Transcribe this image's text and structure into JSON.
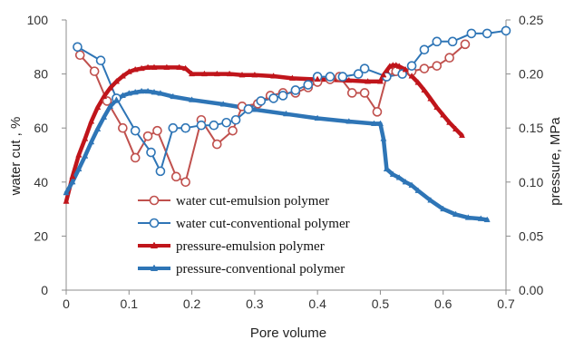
{
  "chart_data": {
    "type": "line",
    "xlabel": "Pore volume",
    "ylabel_left": "water cut , %",
    "ylabel_right": "pressure, MPa",
    "xlim": [
      0,
      0.7
    ],
    "ylim_left": [
      0,
      100
    ],
    "ylim_right": [
      0,
      0.25
    ],
    "x_ticks": [
      "0",
      "0.1",
      "0.2",
      "0.3",
      "0.4",
      "0.5",
      "0.6",
      "0.7"
    ],
    "y_left_ticks": [
      "0",
      "20",
      "40",
      "60",
      "80",
      "100"
    ],
    "y_right_ticks": [
      "0.00",
      "0.05",
      "0.10",
      "0.15",
      "0.20",
      "0.25"
    ],
    "grid": false,
    "legend_position": "lower-left",
    "series": [
      {
        "name": "water cut-emulsion polymer",
        "axis": "left",
        "color": "#c0504d",
        "marker": "circle-open",
        "x": [
          0.022,
          0.045,
          0.065,
          0.09,
          0.11,
          0.13,
          0.145,
          0.175,
          0.19,
          0.215,
          0.24,
          0.265,
          0.28,
          0.305,
          0.325,
          0.345,
          0.365,
          0.385,
          0.4,
          0.42,
          0.435,
          0.455,
          0.475,
          0.495,
          0.51,
          0.525,
          0.55,
          0.57,
          0.59,
          0.61,
          0.635
        ],
        "y": [
          87,
          81,
          70,
          60,
          49,
          57,
          59,
          42,
          40,
          63,
          54,
          59,
          68,
          69,
          72,
          73,
          73,
          75,
          77,
          78,
          79,
          73,
          73,
          66,
          79,
          81,
          81,
          82,
          83,
          86,
          91
        ]
      },
      {
        "name": "water cut-conventional polymer",
        "axis": "left",
        "color": "#2e75b6",
        "marker": "circle-open",
        "x": [
          0.018,
          0.055,
          0.08,
          0.11,
          0.135,
          0.15,
          0.17,
          0.19,
          0.215,
          0.235,
          0.255,
          0.27,
          0.29,
          0.31,
          0.33,
          0.345,
          0.365,
          0.385,
          0.4,
          0.42,
          0.44,
          0.465,
          0.475,
          0.51,
          0.535,
          0.55,
          0.57,
          0.59,
          0.615,
          0.645,
          0.67,
          0.7
        ],
        "y": [
          90,
          85,
          71,
          59,
          51,
          44,
          60,
          60,
          61,
          61,
          62,
          63,
          67,
          70,
          71,
          72,
          74,
          76,
          79,
          79,
          79,
          80,
          82,
          79,
          80,
          83,
          89,
          92,
          92,
          95,
          95,
          96
        ]
      },
      {
        "name": "pressure-emulsion polymer",
        "axis": "right",
        "color": "#c0151b",
        "marker": "triangle-filled",
        "x": [
          0,
          0.01,
          0.02,
          0.03,
          0.04,
          0.05,
          0.06,
          0.07,
          0.08,
          0.09,
          0.1,
          0.11,
          0.12,
          0.13,
          0.14,
          0.16,
          0.18,
          0.19,
          0.2,
          0.22,
          0.24,
          0.26,
          0.28,
          0.3,
          0.33,
          0.36,
          0.4,
          0.45,
          0.48,
          0.5,
          0.505,
          0.51,
          0.515,
          0.52,
          0.525,
          0.53,
          0.54,
          0.55,
          0.56,
          0.57,
          0.58,
          0.59,
          0.6,
          0.61,
          0.62,
          0.63
        ],
        "y": [
          0.082,
          0.105,
          0.125,
          0.14,
          0.156,
          0.169,
          0.179,
          0.187,
          0.193,
          0.198,
          0.202,
          0.204,
          0.205,
          0.206,
          0.206,
          0.206,
          0.206,
          0.205,
          0.2,
          0.2,
          0.2,
          0.2,
          0.199,
          0.199,
          0.198,
          0.196,
          0.195,
          0.194,
          0.193,
          0.193,
          0.199,
          0.203,
          0.207,
          0.208,
          0.208,
          0.207,
          0.204,
          0.198,
          0.192,
          0.185,
          0.177,
          0.169,
          0.162,
          0.155,
          0.149,
          0.143
        ]
      },
      {
        "name": "pressure-conventional polymer",
        "axis": "right",
        "color": "#2e75b6",
        "marker": "triangle-filled",
        "x": [
          0,
          0.01,
          0.02,
          0.03,
          0.04,
          0.05,
          0.06,
          0.07,
          0.08,
          0.09,
          0.1,
          0.11,
          0.12,
          0.13,
          0.14,
          0.15,
          0.17,
          0.2,
          0.25,
          0.3,
          0.35,
          0.4,
          0.45,
          0.49,
          0.5,
          0.505,
          0.51,
          0.52,
          0.53,
          0.54,
          0.55,
          0.56,
          0.58,
          0.6,
          0.62,
          0.64,
          0.66,
          0.67
        ],
        "y": [
          0.09,
          0.1,
          0.112,
          0.124,
          0.137,
          0.149,
          0.16,
          0.17,
          0.176,
          0.18,
          0.182,
          0.183,
          0.184,
          0.184,
          0.183,
          0.182,
          0.179,
          0.176,
          0.172,
          0.167,
          0.163,
          0.159,
          0.156,
          0.154,
          0.154,
          0.14,
          0.112,
          0.107,
          0.104,
          0.1,
          0.097,
          0.092,
          0.083,
          0.075,
          0.07,
          0.067,
          0.066,
          0.065
        ]
      }
    ]
  }
}
